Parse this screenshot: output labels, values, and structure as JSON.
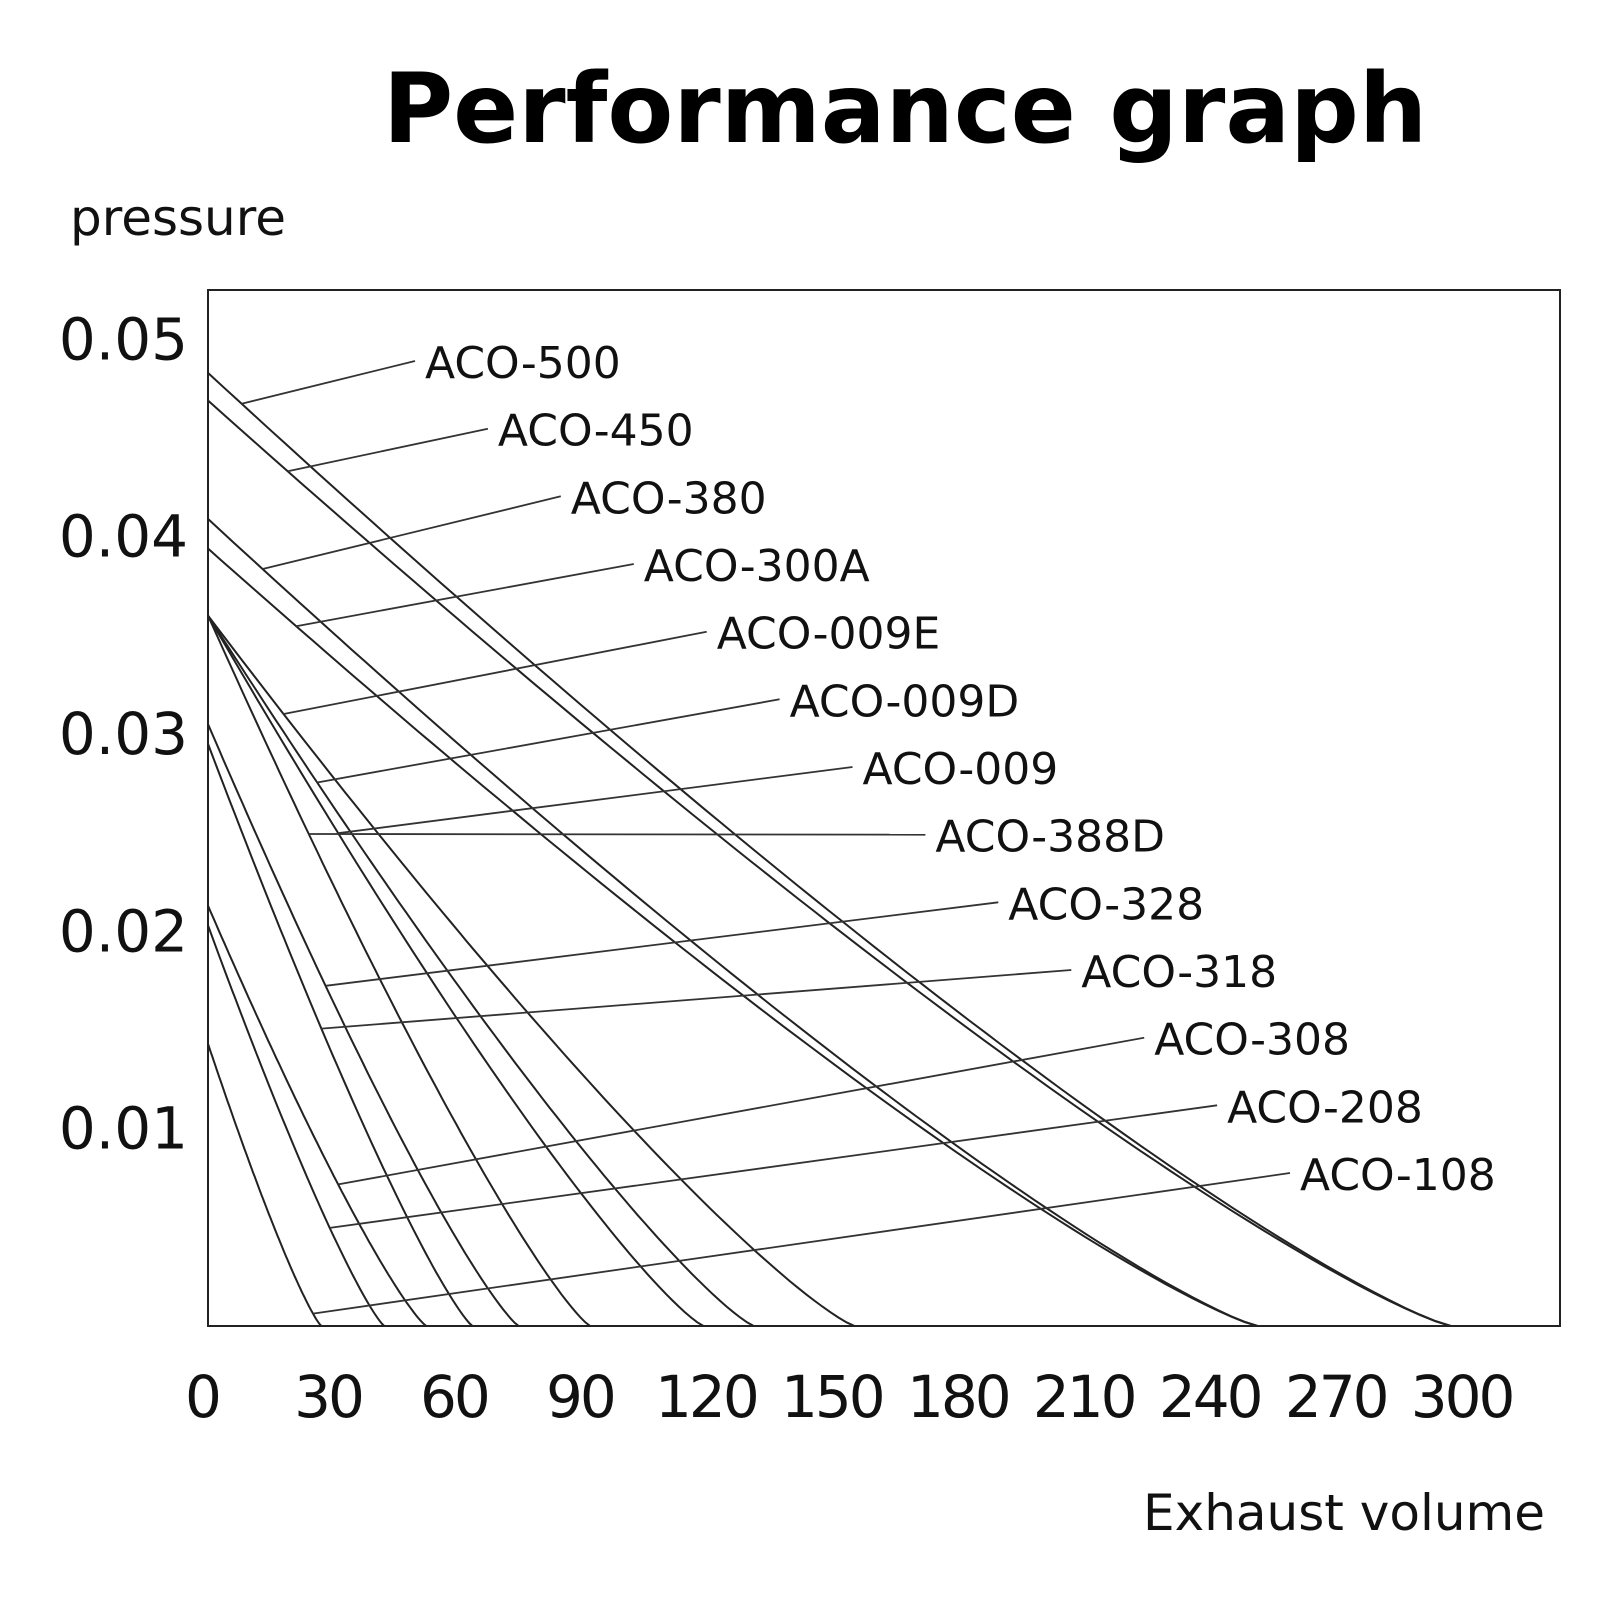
{
  "chart_data": {
    "type": "line",
    "title": "Performance graph",
    "ylabel": "pressure",
    "xlabel": "Exhaust volume",
    "xlim": [
      0,
      322
    ],
    "ylim": [
      0,
      0.0525
    ],
    "x_ticks": [
      "0",
      "30",
      "60",
      "90",
      "120",
      "150",
      "180",
      "210",
      "240",
      "270",
      "300"
    ],
    "y_ticks": [
      "0.01",
      "0.02",
      "0.03",
      "0.04",
      "0.05"
    ],
    "grid": false,
    "series": [
      {
        "name": "ACO-500",
        "max_pressure": 0.0483,
        "max_flow": 296,
        "label_anchor_x": 8
      },
      {
        "name": "ACO-450",
        "max_pressure": 0.0469,
        "max_flow": 296,
        "label_anchor_x": 19
      },
      {
        "name": "ACO-380",
        "max_pressure": 0.0409,
        "max_flow": 250,
        "label_anchor_x": 13
      },
      {
        "name": "ACO-300A",
        "max_pressure": 0.0394,
        "max_flow": 250,
        "label_anchor_x": 21
      },
      {
        "name": "ACO-009E",
        "max_pressure": 0.036,
        "max_flow": 154,
        "label_anchor_x": 18
      },
      {
        "name": "ACO-009D",
        "max_pressure": 0.036,
        "max_flow": 130,
        "label_anchor_x": 26
      },
      {
        "name": "ACO-009",
        "max_pressure": 0.036,
        "max_flow": 118,
        "label_anchor_x": 31
      },
      {
        "name": "ACO-388D",
        "max_pressure": 0.036,
        "max_flow": 91,
        "label_anchor_x": 24
      },
      {
        "name": "ACO-328",
        "max_pressure": 0.0305,
        "max_flow": 74,
        "label_anchor_x": 28
      },
      {
        "name": "ACO-318",
        "max_pressure": 0.0295,
        "max_flow": 63,
        "label_anchor_x": 27
      },
      {
        "name": "ACO-308",
        "max_pressure": 0.0213,
        "max_flow": 52,
        "label_anchor_x": 31
      },
      {
        "name": "ACO-208",
        "max_pressure": 0.0203,
        "max_flow": 42,
        "label_anchor_x": 29
      },
      {
        "name": "ACO-108",
        "max_pressure": 0.0143,
        "max_flow": 27,
        "label_anchor_x": 25
      }
    ]
  }
}
